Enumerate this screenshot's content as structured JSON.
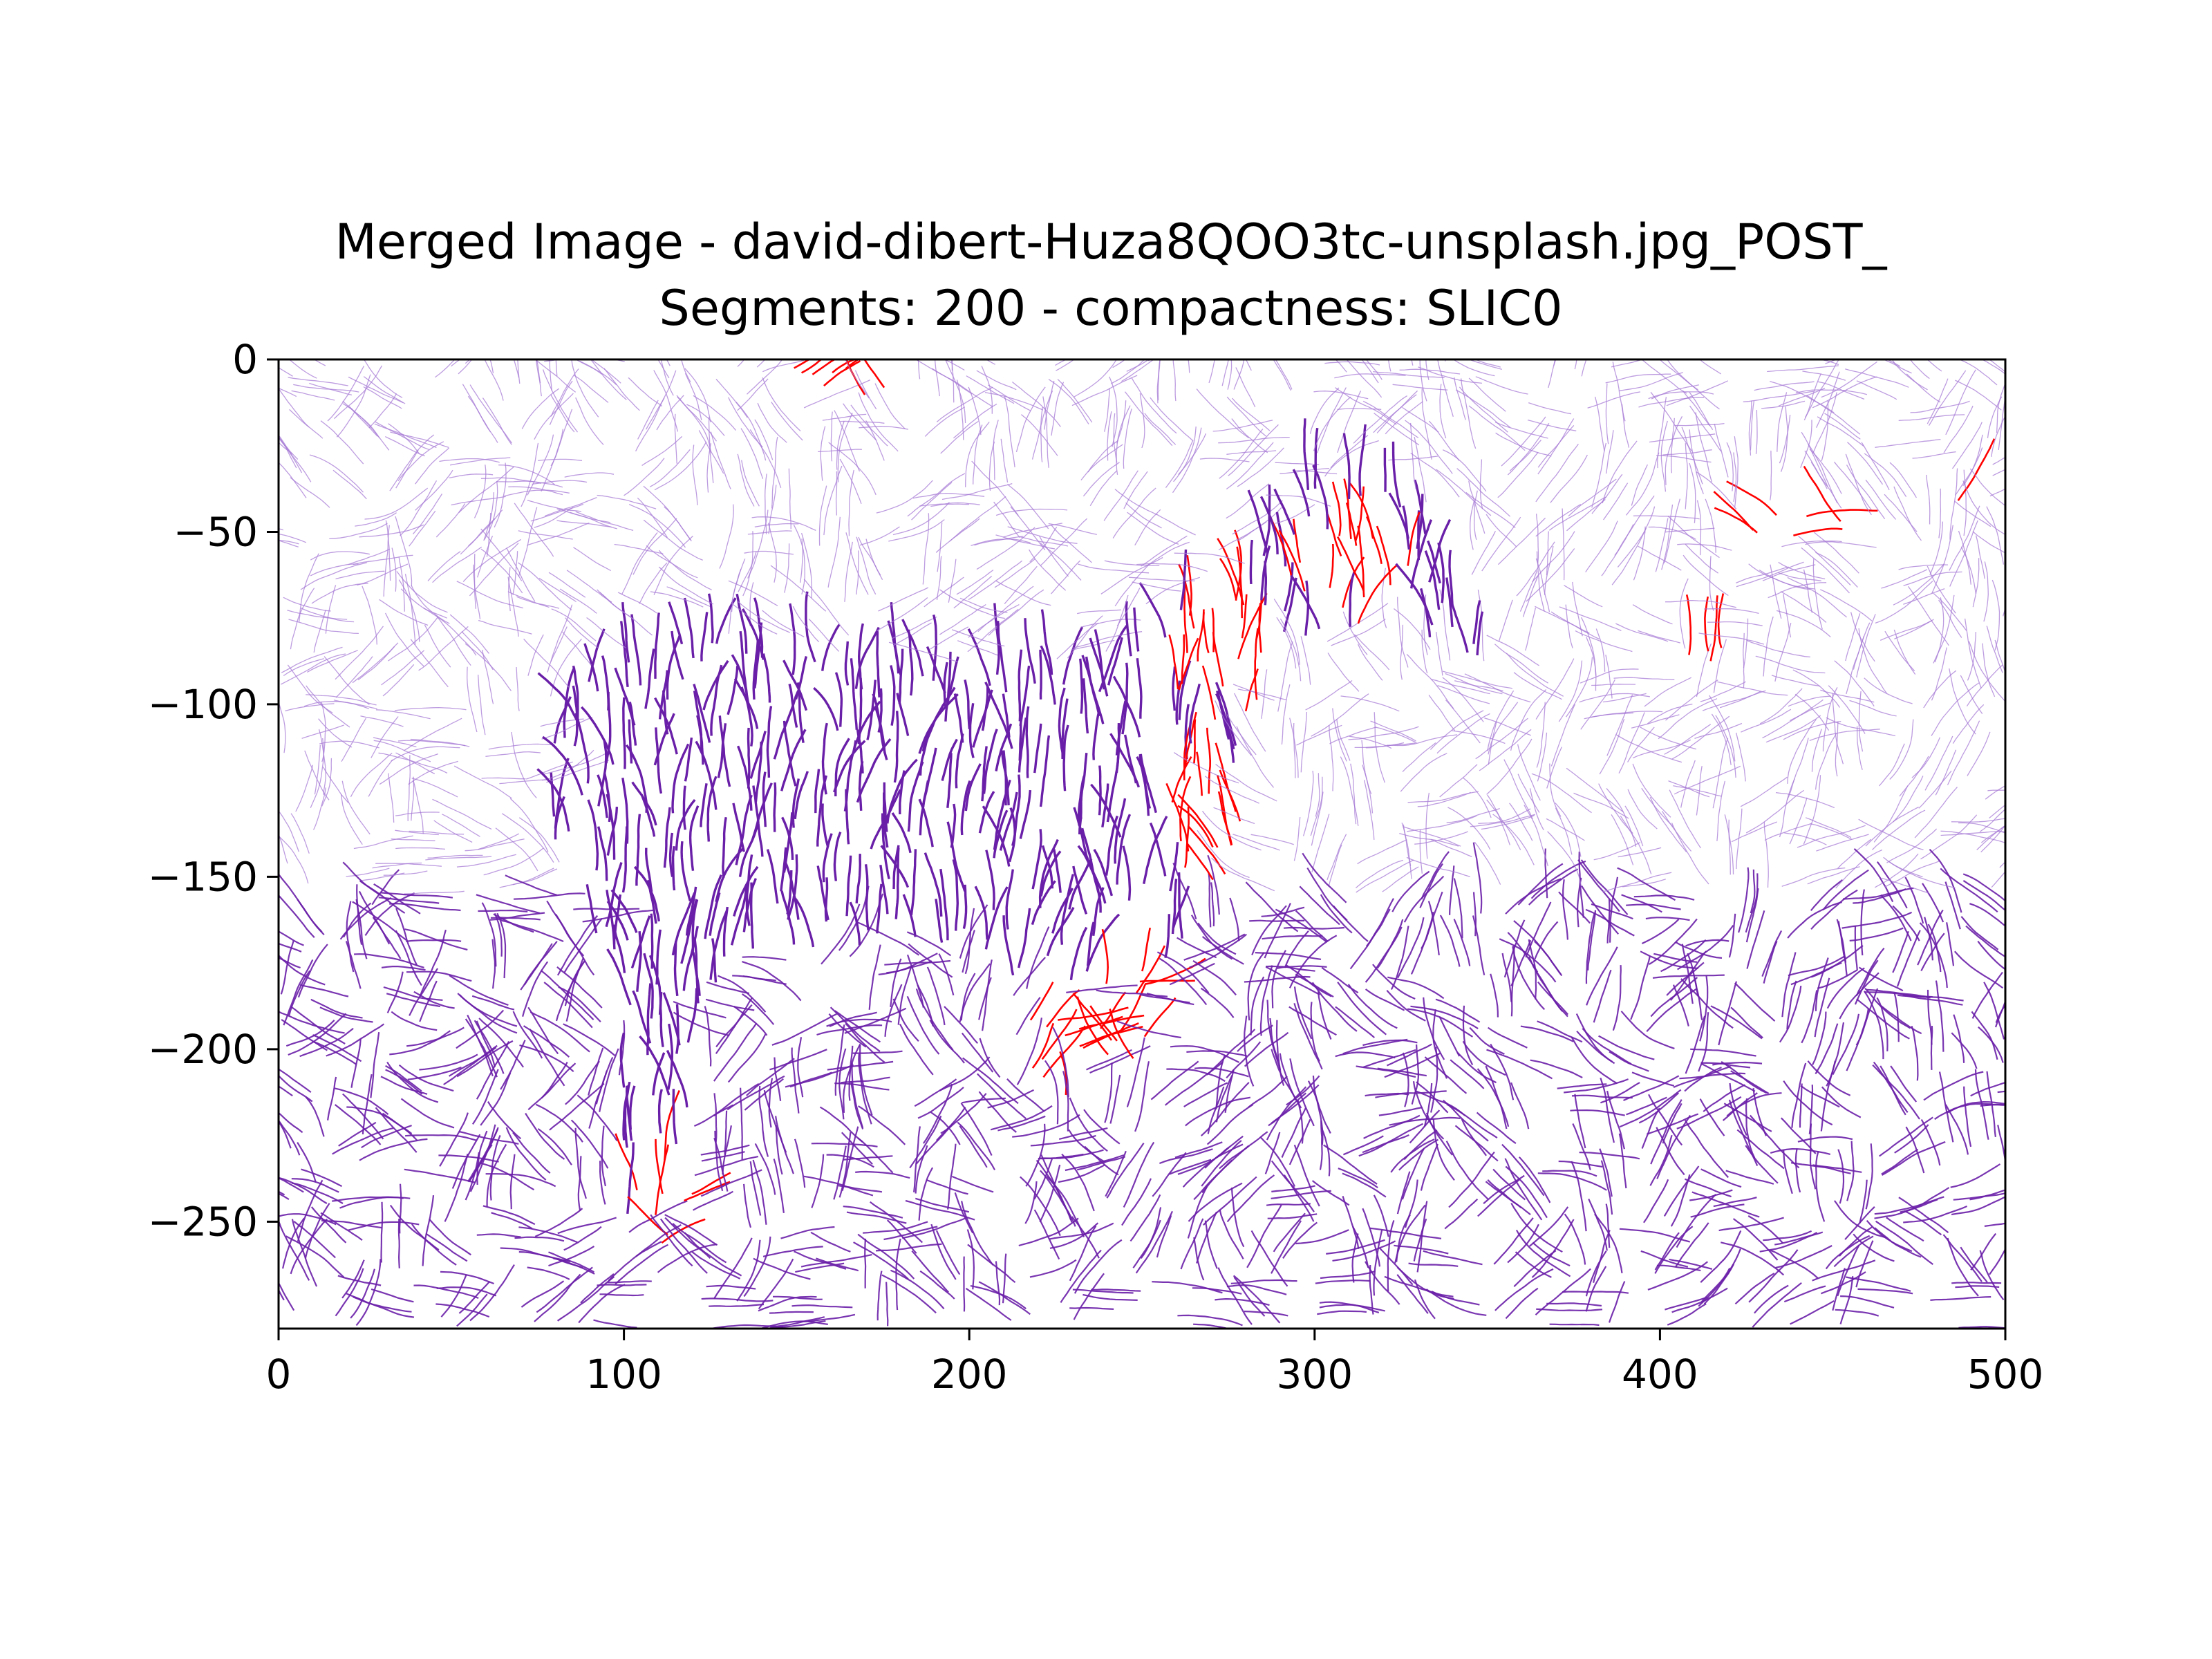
{
  "chart_data": {
    "type": "streamplot",
    "title_lines": [
      "Merged Image - david-dibert-Huza8QOO3tc-unsplash.jpg_POST_",
      "Segments: 200 - compactness: SLIC0"
    ],
    "xlabel": "",
    "ylabel": "",
    "xlim": [
      0,
      500
    ],
    "ylim": [
      -281,
      0
    ],
    "x_ticks": [
      0,
      100,
      200,
      300,
      400,
      500
    ],
    "x_tick_labels": [
      "0",
      "100",
      "200",
      "300",
      "400",
      "500"
    ],
    "y_ticks": [
      0,
      -50,
      -100,
      -150,
      -200,
      -250
    ],
    "y_tick_labels": [
      "0",
      "−50",
      "−100",
      "−150",
      "−200",
      "−250"
    ],
    "grid": false,
    "legend": "none",
    "colors": {
      "primary_stream": "#6a1fa8",
      "light_stream": "#a77bd6",
      "highlight_stream": "#ff0000"
    },
    "highlight_regions": [
      {
        "cx": 310,
        "cy": -63,
        "rx": 18,
        "ry": 14
      },
      {
        "cx": 272,
        "cy": -87,
        "rx": 14,
        "ry": 20
      },
      {
        "cx": 268,
        "cy": -135,
        "rx": 12,
        "ry": 20
      },
      {
        "cx": 224,
        "cy": -200,
        "rx": 9,
        "ry": 16
      },
      {
        "cx": 245,
        "cy": -192,
        "rx": 13,
        "ry": 17
      },
      {
        "cx": 111,
        "cy": -242,
        "rx": 9,
        "ry": 16
      },
      {
        "cx": 160,
        "cy": -6,
        "rx": 22,
        "ry": 5
      },
      {
        "cx": 438,
        "cy": -47,
        "rx": 16,
        "ry": 5
      },
      {
        "cx": 485,
        "cy": -44,
        "rx": 14,
        "ry": 4
      },
      {
        "cx": 420,
        "cy": -85,
        "rx": 12,
        "ry": 4
      }
    ]
  }
}
